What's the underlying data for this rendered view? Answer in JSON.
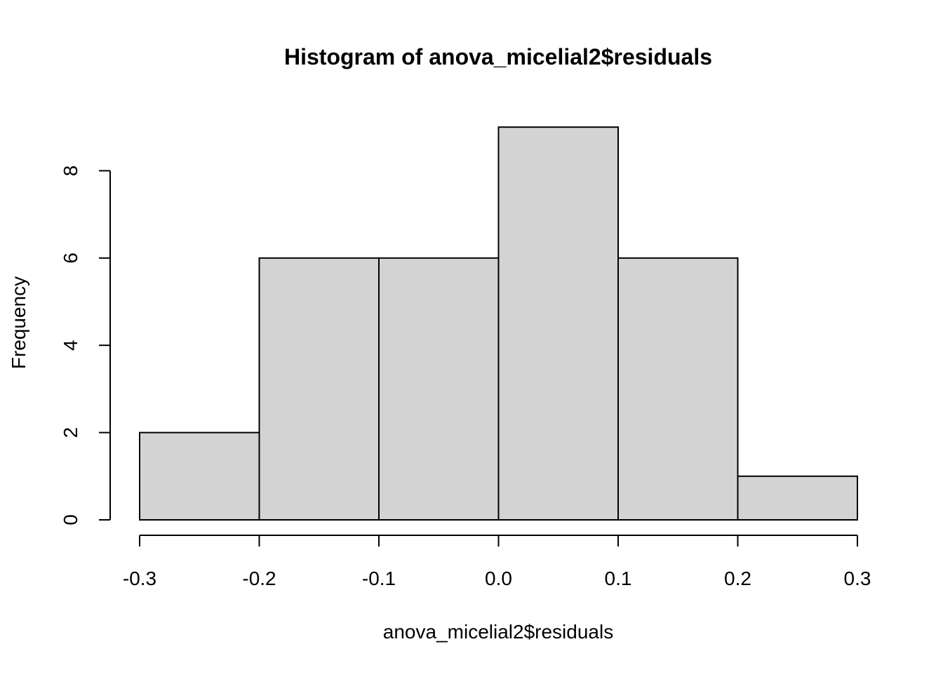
{
  "chart_data": {
    "type": "bar",
    "title": "Histogram of anova_micelial2$residuals",
    "xlabel": "anova_micelial2$residuals",
    "ylabel": "Frequency",
    "bins": [
      {
        "from": -0.3,
        "to": -0.2,
        "count": 2
      },
      {
        "from": -0.2,
        "to": -0.1,
        "count": 6
      },
      {
        "from": -0.1,
        "to": 0.0,
        "count": 6
      },
      {
        "from": 0.0,
        "to": 0.1,
        "count": 9
      },
      {
        "from": 0.1,
        "to": 0.2,
        "count": 6
      },
      {
        "from": 0.2,
        "to": 0.3,
        "count": 1
      }
    ],
    "x_ticks": [
      "-0.3",
      "-0.2",
      "-0.1",
      "0.0",
      "0.1",
      "0.2",
      "0.3"
    ],
    "x_tick_values": [
      -0.3,
      -0.2,
      -0.1,
      0.0,
      0.1,
      0.2,
      0.3
    ],
    "y_ticks": [
      "0",
      "2",
      "4",
      "6",
      "8"
    ],
    "y_tick_values": [
      0,
      2,
      4,
      6,
      8
    ],
    "xlim": [
      -0.3,
      0.3
    ],
    "ylim": [
      0,
      9
    ],
    "bar_fill": "#d3d3d3",
    "bar_stroke": "#000000",
    "grid": false,
    "legend": "none"
  }
}
